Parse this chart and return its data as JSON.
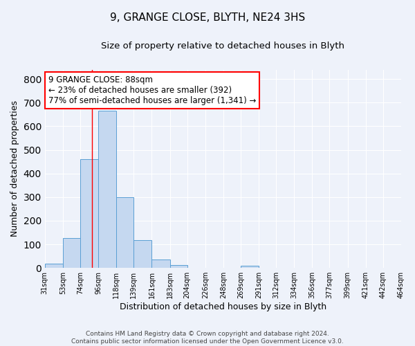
{
  "title": "9, GRANGE CLOSE, BLYTH, NE24 3HS",
  "subtitle": "Size of property relative to detached houses in Blyth",
  "xlabel": "Distribution of detached houses by size in Blyth",
  "ylabel": "Number of detached properties",
  "bar_edges": [
    31,
    53,
    74,
    96,
    118,
    139,
    161,
    183,
    204,
    226,
    248,
    269,
    291,
    312,
    334,
    356,
    377,
    399,
    421,
    442,
    464
  ],
  "bar_heights": [
    18,
    128,
    460,
    665,
    300,
    117,
    35,
    12,
    0,
    0,
    0,
    8,
    0,
    0,
    0,
    0,
    0,
    0,
    0,
    0
  ],
  "bar_color": "#c5d8f0",
  "bar_edge_color": "#5a9fd4",
  "property_line_x": 88,
  "property_line_color": "red",
  "annotation_text": "9 GRANGE CLOSE: 88sqm\n← 23% of detached houses are smaller (392)\n77% of semi-detached houses are larger (1,341) →",
  "annotation_box_color": "white",
  "annotation_box_edge_color": "red",
  "ylim": [
    0,
    840
  ],
  "yticks": [
    0,
    100,
    200,
    300,
    400,
    500,
    600,
    700,
    800
  ],
  "tick_labels": [
    "31sqm",
    "53sqm",
    "74sqm",
    "96sqm",
    "118sqm",
    "139sqm",
    "161sqm",
    "183sqm",
    "204sqm",
    "226sqm",
    "248sqm",
    "269sqm",
    "291sqm",
    "312sqm",
    "334sqm",
    "356sqm",
    "377sqm",
    "399sqm",
    "421sqm",
    "442sqm",
    "464sqm"
  ],
  "footer_line1": "Contains HM Land Registry data © Crown copyright and database right 2024.",
  "footer_line2": "Contains public sector information licensed under the Open Government Licence v3.0.",
  "bg_color": "#eef2fa",
  "grid_color": "#ffffff",
  "title_fontsize": 11,
  "subtitle_fontsize": 9.5,
  "axis_label_fontsize": 9,
  "tick_fontsize": 7,
  "footer_fontsize": 6.5,
  "annotation_fontsize": 8.5
}
